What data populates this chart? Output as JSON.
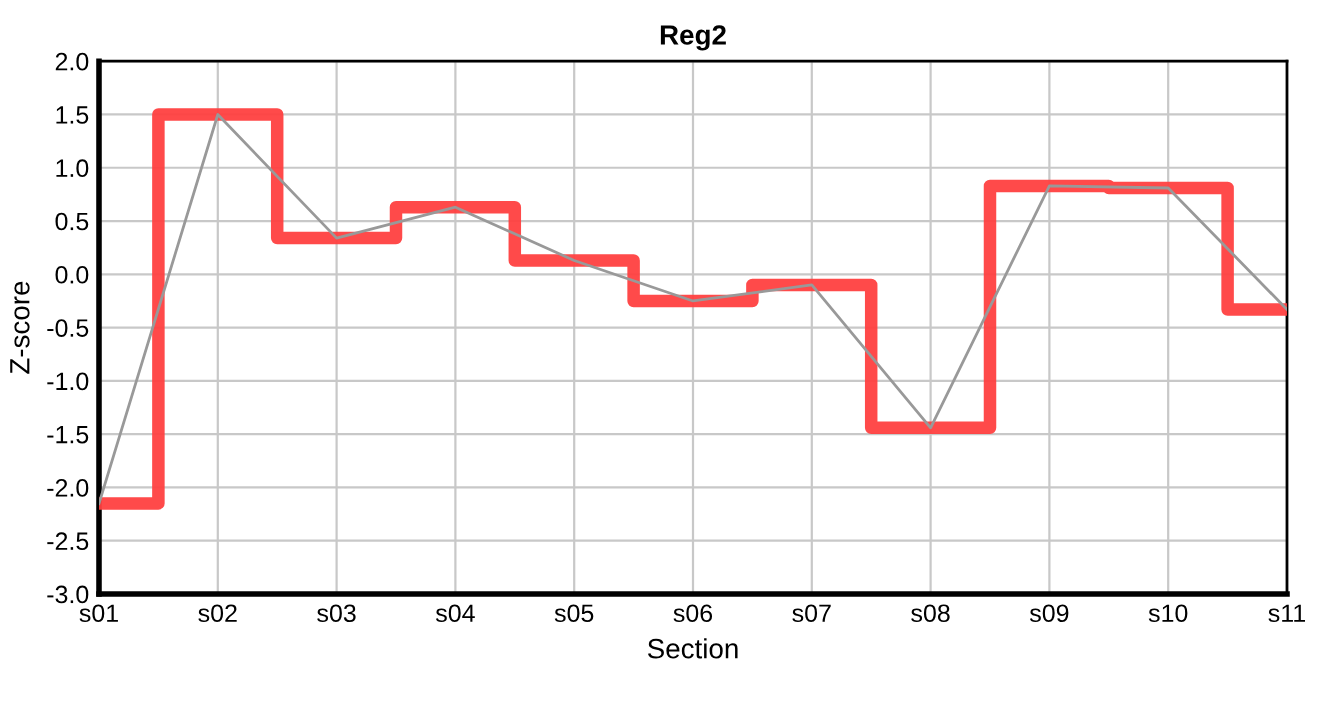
{
  "chart_data": {
    "type": "step",
    "title": "Reg2",
    "xlabel": "Section",
    "ylabel": "Z-score",
    "categories": [
      "s01",
      "s02",
      "s03",
      "s04",
      "s05",
      "s06",
      "s07",
      "s08",
      "s09",
      "s10",
      "s11"
    ],
    "series": [
      {
        "color": "#ff4040",
        "values": [
          -2.15,
          1.5,
          0.34,
          0.63,
          0.13,
          -0.25,
          -0.1,
          -1.44,
          0.83,
          0.81,
          -0.33
        ]
      },
      {
        "type": "line",
        "color": "#999999",
        "values": [
          -2.15,
          1.5,
          0.34,
          0.63,
          0.13,
          -0.25,
          -0.1,
          -1.44,
          0.83,
          0.81,
          -0.33
        ]
      }
    ],
    "ylim": [
      -3.0,
      2.0
    ],
    "yticks": [
      {
        "value": -3.0,
        "label": "-3.0"
      },
      {
        "value": -2.5,
        "label": "-2.5"
      },
      {
        "value": -2.0,
        "label": "-2.0"
      },
      {
        "value": -1.5,
        "label": "-1.5"
      },
      {
        "value": -1.0,
        "label": "-1.0"
      },
      {
        "value": -0.5,
        "label": "-0.5"
      },
      {
        "value": 0.0,
        "label": "0.0"
      },
      {
        "value": 0.5,
        "label": "0.5"
      },
      {
        "value": 1.0,
        "label": "1.0"
      },
      {
        "value": 1.5,
        "label": "1.5"
      },
      {
        "value": 2.0,
        "label": "2.0"
      }
    ],
    "grid": true
  }
}
